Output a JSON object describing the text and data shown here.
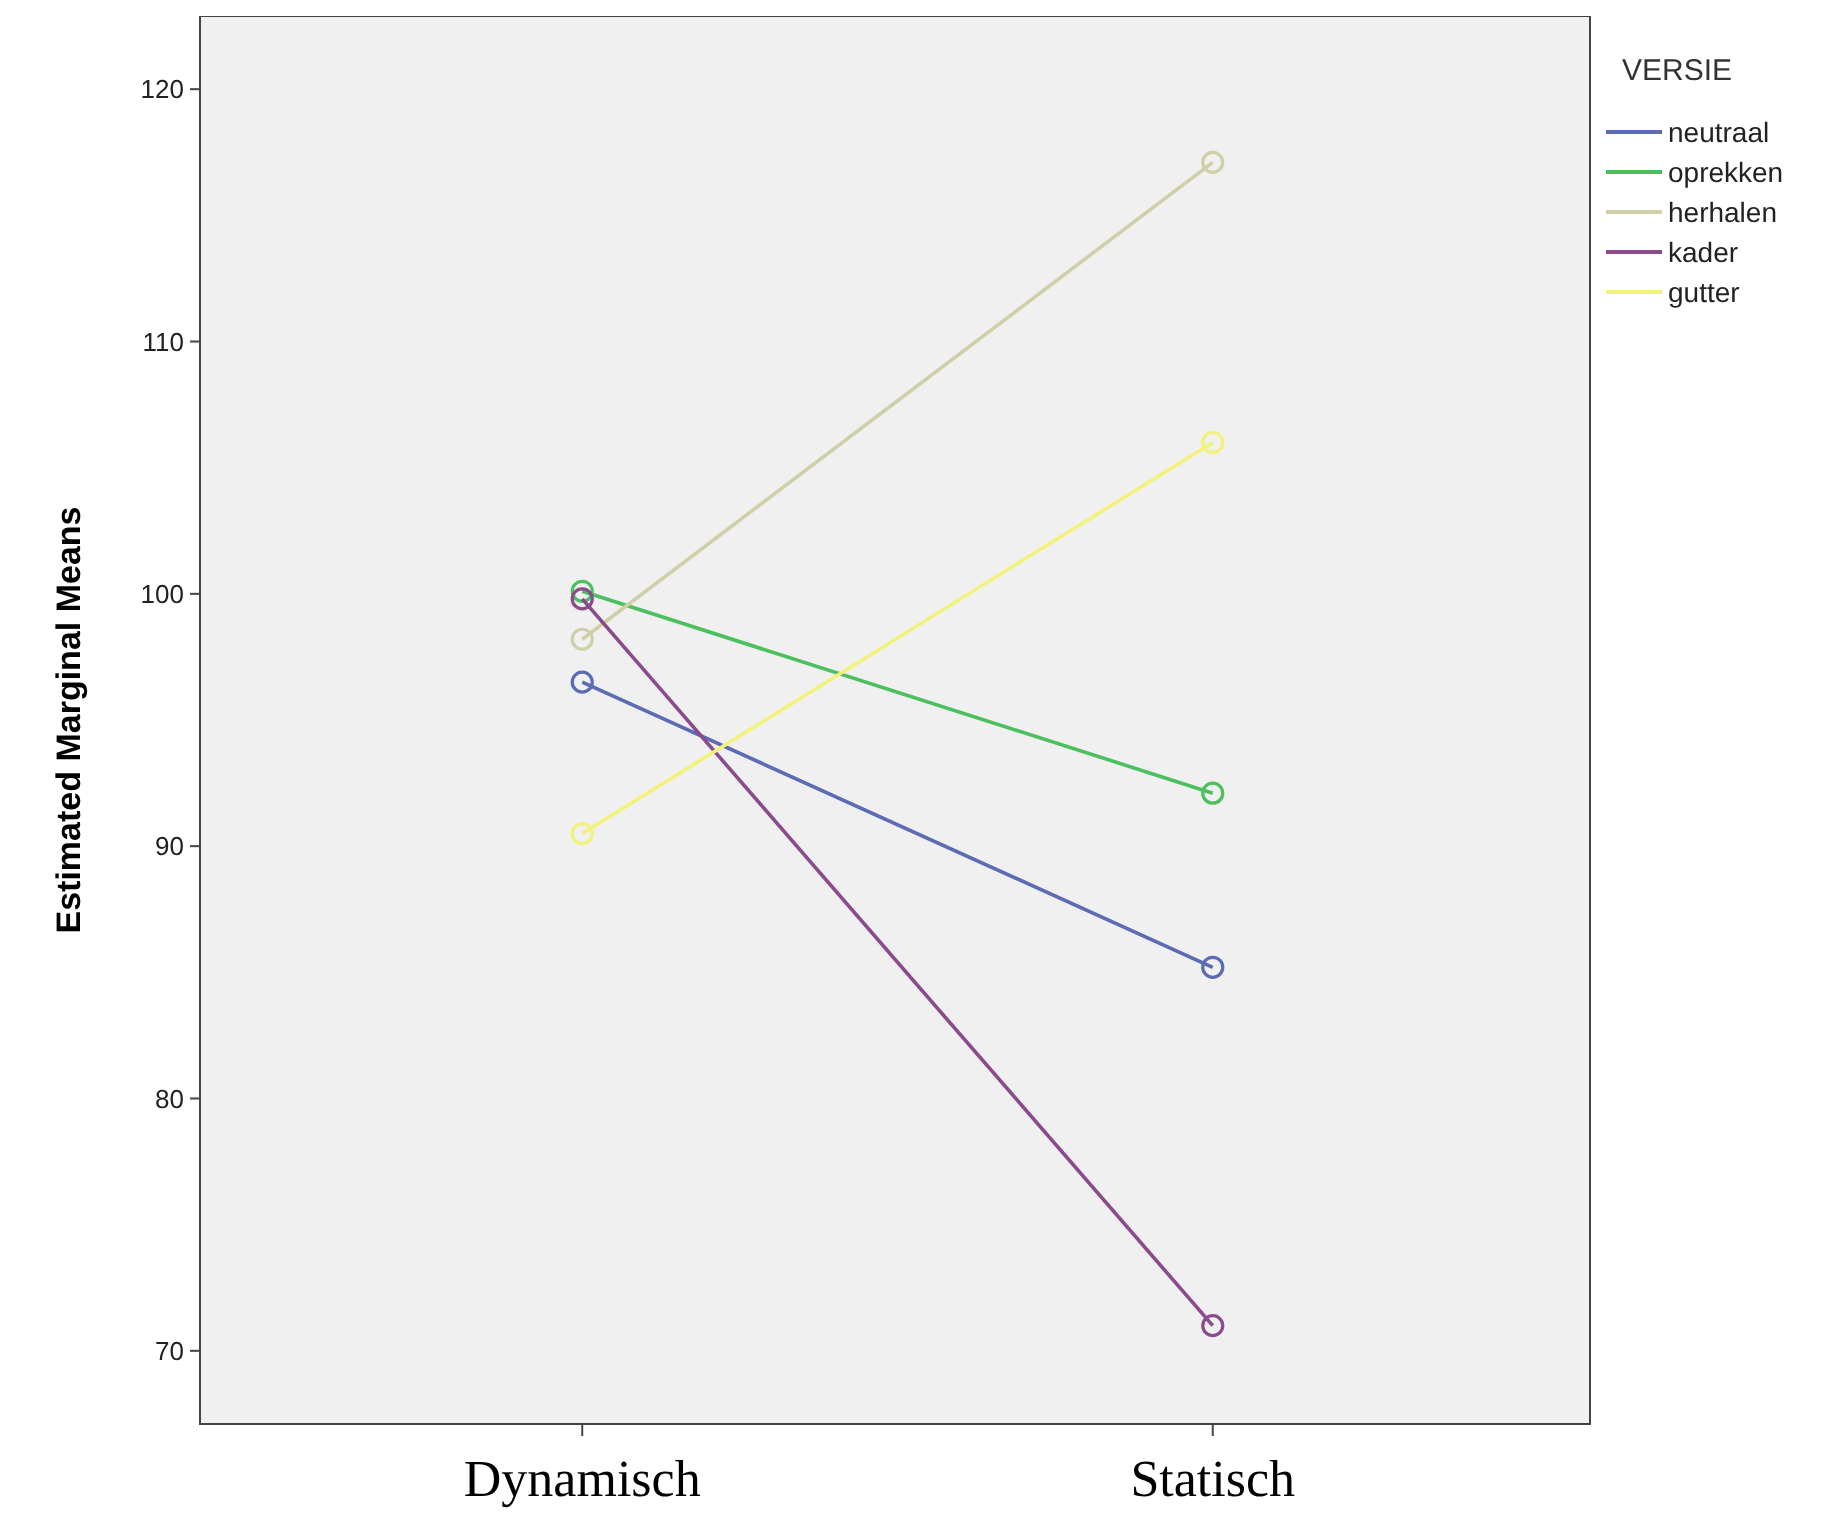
{
  "chart_data": {
    "type": "line",
    "ylabel": "Estimated Marginal Means",
    "legend_title": "VERSIE",
    "categories": [
      "Dynamisch",
      "Statisch"
    ],
    "series": [
      {
        "name": "neutraal",
        "color": "#5b6bb5",
        "values": [
          96.5,
          85.2
        ]
      },
      {
        "name": "oprekken",
        "color": "#4cc05e",
        "values": [
          100.1,
          92.1
        ]
      },
      {
        "name": "herhalen",
        "color": "#cfcfa8",
        "values": [
          98.2,
          117.1
        ]
      },
      {
        "name": "kader",
        "color": "#8a4a8c",
        "values": [
          99.8,
          71.0
        ]
      },
      {
        "name": "gutter",
        "color": "#f2f27a",
        "values": [
          90.5,
          106.0
        ]
      }
    ],
    "ylim": [
      67.1,
      122.9
    ],
    "yticks": [
      70,
      80,
      90,
      100,
      110,
      120
    ],
    "marker": "circle",
    "legend": "top right",
    "grid": false
  }
}
